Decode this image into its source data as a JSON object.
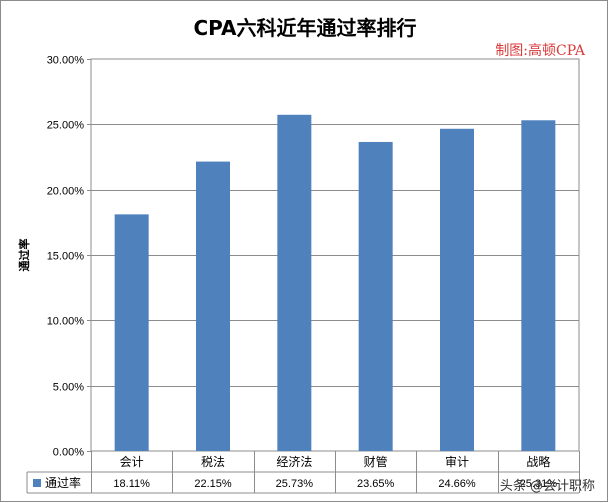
{
  "chart_data": {
    "type": "bar",
    "title": "CPA六科近年通过率排行",
    "credit": "制图:高顿CPA",
    "ylabel": "通过率",
    "xlabel": "",
    "ylim": [
      0,
      0.3
    ],
    "ytick_step": 0.05,
    "yticks": [
      "0.00%",
      "5.00%",
      "10.00%",
      "15.00%",
      "20.00%",
      "25.00%",
      "30.00%"
    ],
    "grid": true,
    "legend": "data-table-left",
    "categories": [
      "会计",
      "税法",
      "经济法",
      "财管",
      "审计",
      "战略"
    ],
    "series": [
      {
        "name": "通过率",
        "color": "#4f81bd",
        "values": [
          0.1811,
          0.2215,
          0.2573,
          0.2365,
          0.2466,
          0.2531
        ],
        "labels": [
          "18.11%",
          "22.15%",
          "25.73%",
          "23.65%",
          "24.66%",
          "25.31%"
        ]
      }
    ]
  },
  "watermark": "头条 @会计职称"
}
